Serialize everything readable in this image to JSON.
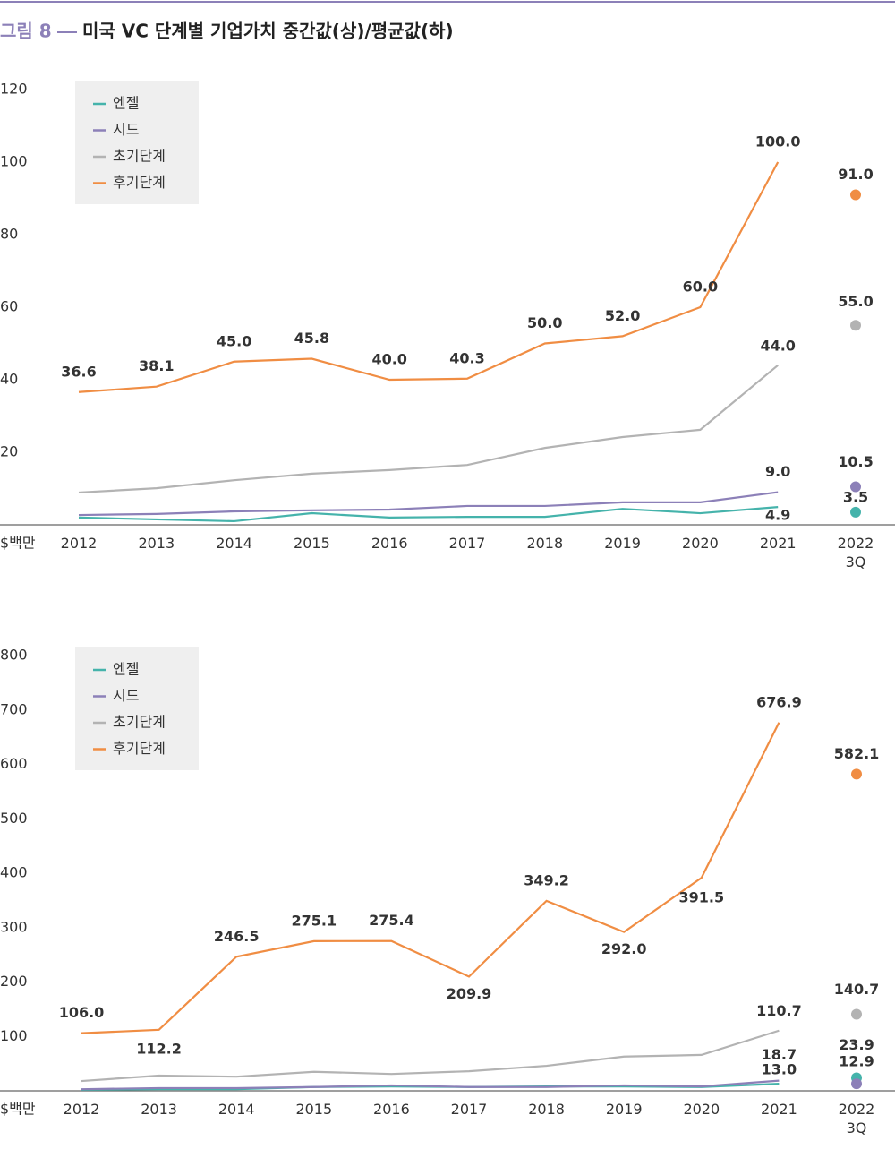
{
  "figure": {
    "label": "그림 8",
    "title": "미국 VC 단계별 기업가치 중간값(상)/평균값(하)"
  },
  "chart_data": [
    {
      "type": "line",
      "y_unit": "$백만",
      "categories": [
        "2012",
        "2013",
        "2014",
        "2015",
        "2016",
        "2017",
        "2018",
        "2019",
        "2020",
        "2021",
        "2022\n3Q"
      ],
      "ylim": [
        0,
        120
      ],
      "yticks": [
        20,
        40,
        60,
        80,
        100,
        120
      ],
      "series": [
        {
          "name": "엔젤",
          "color": "#45b3ab",
          "values": [
            2.0,
            1.5,
            1.0,
            3.2,
            2.0,
            2.2,
            2.2,
            4.4,
            3.2,
            4.9,
            3.5
          ],
          "value_labels": [
            null,
            null,
            null,
            null,
            null,
            null,
            null,
            null,
            null,
            "4.9",
            "3.5"
          ]
        },
        {
          "name": "시드",
          "color": "#8c80b8",
          "values": [
            2.7,
            3.0,
            3.7,
            4.0,
            4.2,
            5.2,
            5.2,
            6.2,
            6.2,
            9.0,
            10.5
          ],
          "value_labels": [
            null,
            null,
            null,
            null,
            null,
            null,
            null,
            null,
            null,
            "9.0",
            "10.5"
          ]
        },
        {
          "name": "초기단계",
          "color": "#b3b3b3",
          "values": [
            8.9,
            10.1,
            12.3,
            14.1,
            15.1,
            16.5,
            21.2,
            24.2,
            26.2,
            44.0,
            55.0
          ],
          "value_labels": [
            null,
            null,
            null,
            null,
            null,
            null,
            null,
            null,
            null,
            "44.0",
            "55.0"
          ]
        },
        {
          "name": "후기단계",
          "color": "#f08d43",
          "values": [
            36.6,
            38.1,
            45.0,
            45.8,
            40.0,
            40.3,
            50.0,
            52.0,
            60.0,
            100.0,
            91.0
          ],
          "value_labels": [
            "36.6",
            "38.1",
            "45.0",
            "45.8",
            "40.0",
            "40.3",
            "50.0",
            "52.0",
            "60.0",
            "100.0",
            "91.0"
          ]
        }
      ]
    },
    {
      "type": "line",
      "y_unit": "$백만",
      "categories": [
        "2012",
        "2013",
        "2014",
        "2015",
        "2016",
        "2017",
        "2018",
        "2019",
        "2020",
        "2021",
        "2022\n3Q"
      ],
      "ylim": [
        0,
        800
      ],
      "yticks": [
        100,
        200,
        300,
        400,
        500,
        600,
        700,
        800
      ],
      "series": [
        {
          "name": "엔젤",
          "color": "#45b3ab",
          "values": [
            2,
            3,
            3,
            7,
            8,
            7,
            8,
            8,
            7,
            13.0,
            23.9
          ],
          "value_labels": [
            null,
            null,
            null,
            null,
            null,
            null,
            null,
            null,
            null,
            "13.0",
            "23.9"
          ]
        },
        {
          "name": "시드",
          "color": "#8c80b8",
          "values": [
            3,
            5,
            5,
            7,
            10,
            7,
            7,
            10,
            8,
            18.7,
            12.9
          ],
          "value_labels": [
            null,
            null,
            null,
            null,
            null,
            null,
            null,
            null,
            null,
            "18.7",
            "12.9"
          ]
        },
        {
          "name": "초기단계",
          "color": "#b3b3b3",
          "values": [
            18,
            28,
            26,
            35,
            31,
            36,
            46,
            63,
            66,
            110.7,
            140.7
          ],
          "value_labels": [
            null,
            null,
            null,
            null,
            null,
            null,
            null,
            null,
            null,
            "110.7",
            "140.7"
          ]
        },
        {
          "name": "후기단계",
          "color": "#f08d43",
          "values": [
            106.0,
            112.2,
            246.5,
            275.1,
            275.4,
            209.9,
            349.2,
            292.0,
            391.5,
            676.9,
            582.1
          ],
          "value_labels": [
            "106.0",
            "112.2",
            "246.5",
            "275.1",
            "275.4",
            "209.9",
            "349.2",
            "292.0",
            "391.5",
            "676.9",
            "582.1"
          ]
        }
      ]
    }
  ]
}
